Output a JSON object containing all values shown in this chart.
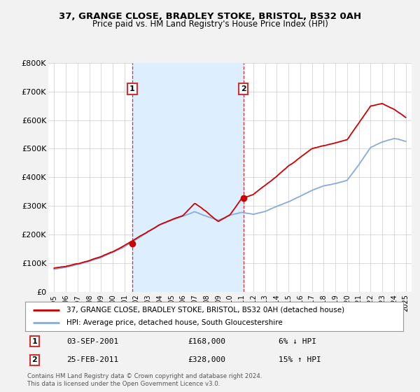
{
  "title": "37, GRANGE CLOSE, BRADLEY STOKE, BRISTOL, BS32 0AH",
  "subtitle": "Price paid vs. HM Land Registry's House Price Index (HPI)",
  "ylabel_ticks": [
    "£0",
    "£100K",
    "£200K",
    "£300K",
    "£400K",
    "£500K",
    "£600K",
    "£700K",
    "£800K"
  ],
  "ytick_values": [
    0,
    100000,
    200000,
    300000,
    400000,
    500000,
    600000,
    700000,
    800000
  ],
  "ylim": [
    0,
    800000
  ],
  "xlim_start": 1994.5,
  "xlim_end": 2025.5,
  "sale1_x": 2001.67,
  "sale1_y": 168000,
  "sale1_label": "1",
  "sale2_x": 2011.15,
  "sale2_y": 328000,
  "sale2_label": "2",
  "shade_color": "#ddeeff",
  "line_color_red": "#cc0000",
  "line_color_blue": "#88aadd",
  "legend1_label": "37, GRANGE CLOSE, BRADLEY STOKE, BRISTOL, BS32 0AH (detached house)",
  "legend2_label": "HPI: Average price, detached house, South Gloucestershire",
  "annotation1_date": "03-SEP-2001",
  "annotation1_price": "£168,000",
  "annotation1_hpi": "6% ↓ HPI",
  "annotation2_date": "25-FEB-2011",
  "annotation2_price": "£328,000",
  "annotation2_hpi": "15% ↑ HPI",
  "footnote": "Contains HM Land Registry data © Crown copyright and database right 2024.\nThis data is licensed under the Open Government Licence v3.0.",
  "background_color": "#f2f2f2",
  "plot_bg_color": "#ffffff",
  "years": [
    1995,
    1996,
    1997,
    1998,
    1999,
    2000,
    2001,
    2002,
    2003,
    2004,
    2005,
    2006,
    2007,
    2008,
    2009,
    2010,
    2011,
    2012,
    2013,
    2014,
    2015,
    2016,
    2017,
    2018,
    2019,
    2020,
    2021,
    2022,
    2023,
    2024,
    2025
  ],
  "hpi_vals": [
    78000,
    85000,
    95000,
    107000,
    120000,
    138000,
    158000,
    183000,
    208000,
    232000,
    248000,
    262000,
    280000,
    265000,
    250000,
    268000,
    278000,
    272000,
    282000,
    300000,
    315000,
    335000,
    355000,
    370000,
    380000,
    390000,
    445000,
    505000,
    525000,
    538000,
    528000
  ],
  "red_vals": [
    78000,
    85000,
    95000,
    107000,
    120000,
    138000,
    162000,
    185000,
    210000,
    235000,
    252000,
    267000,
    310000,
    282000,
    248000,
    272000,
    330000,
    345000,
    375000,
    405000,
    440000,
    470000,
    500000,
    510000,
    520000,
    530000,
    590000,
    650000,
    660000,
    640000,
    610000
  ]
}
